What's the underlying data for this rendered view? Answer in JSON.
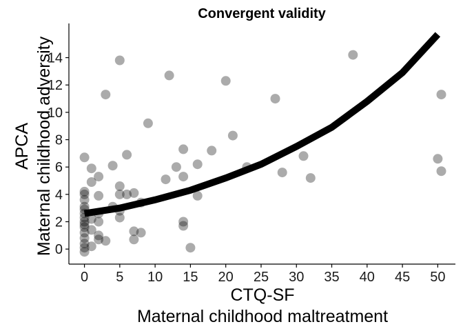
{
  "chart_data": {
    "type": "scatter",
    "title": "Convergent validity",
    "xlabel": [
      "CTQ-SF",
      "Maternal childhood maltreatment"
    ],
    "ylabel": [
      "APCA",
      "Maternal childhood adversity"
    ],
    "xlim": [
      -2.2,
      52.5
    ],
    "ylim": [
      -1.1,
      16.5
    ],
    "xticks": [
      0,
      5,
      10,
      15,
      20,
      25,
      30,
      35,
      40,
      45,
      50
    ],
    "yticks": [
      0,
      2,
      4,
      6,
      8,
      10,
      12,
      14
    ],
    "grid": false,
    "legend": "none",
    "point_color": "#000000",
    "point_opacity": 0.33,
    "line_color": "#000000",
    "points": [
      [
        0,
        6.7
      ],
      [
        0,
        4.2
      ],
      [
        0,
        4.0
      ],
      [
        0,
        3.6
      ],
      [
        0,
        3.1
      ],
      [
        0,
        2.9
      ],
      [
        0,
        2.6
      ],
      [
        0,
        2.3
      ],
      [
        0,
        2.0
      ],
      [
        0,
        1.8
      ],
      [
        0,
        1.6
      ],
      [
        0,
        1.2
      ],
      [
        0,
        0.8
      ],
      [
        0,
        0.4
      ],
      [
        0,
        0.1
      ],
      [
        0,
        -0.2
      ],
      [
        1,
        5.9
      ],
      [
        1,
        4.9
      ],
      [
        1,
        2.2
      ],
      [
        1,
        1.4
      ],
      [
        1,
        0.2
      ],
      [
        2,
        5.3
      ],
      [
        2,
        3.9
      ],
      [
        2,
        2.6
      ],
      [
        2,
        2.0
      ],
      [
        2,
        1.0
      ],
      [
        2,
        0.7
      ],
      [
        3,
        11.3
      ],
      [
        3,
        0.6
      ],
      [
        4,
        6.1
      ],
      [
        4,
        3.1
      ],
      [
        5,
        13.8
      ],
      [
        5,
        4.6
      ],
      [
        5,
        4.0
      ],
      [
        5,
        2.8
      ],
      [
        5,
        2.3
      ],
      [
        6,
        6.9
      ],
      [
        6,
        4.0
      ],
      [
        7,
        4.1
      ],
      [
        7,
        1.3
      ],
      [
        7,
        0.7
      ],
      [
        8,
        3.4
      ],
      [
        8,
        1.2
      ],
      [
        9,
        9.2
      ],
      [
        11.5,
        5.1
      ],
      [
        12,
        12.7
      ],
      [
        13,
        6.0
      ],
      [
        14,
        7.3
      ],
      [
        14,
        5.3
      ],
      [
        14,
        2.0
      ],
      [
        14,
        1.7
      ],
      [
        15,
        0.1
      ],
      [
        16,
        6.2
      ],
      [
        16,
        3.9
      ],
      [
        18,
        7.2
      ],
      [
        20,
        12.3
      ],
      [
        21,
        8.3
      ],
      [
        23,
        6.0
      ],
      [
        27,
        11.0
      ],
      [
        28,
        5.6
      ],
      [
        31,
        6.8
      ],
      [
        32,
        5.2
      ],
      [
        38,
        14.2
      ],
      [
        50,
        6.6
      ],
      [
        50.5,
        11.3
      ],
      [
        50.5,
        5.7
      ]
    ],
    "fit_curve": {
      "type": "exponential",
      "x": [
        0,
        5,
        10,
        15,
        20,
        25,
        30,
        35,
        40,
        45,
        50
      ],
      "y": [
        2.6,
        3.0,
        3.6,
        4.3,
        5.2,
        6.2,
        7.5,
        8.9,
        10.8,
        12.9,
        15.7
      ]
    }
  }
}
